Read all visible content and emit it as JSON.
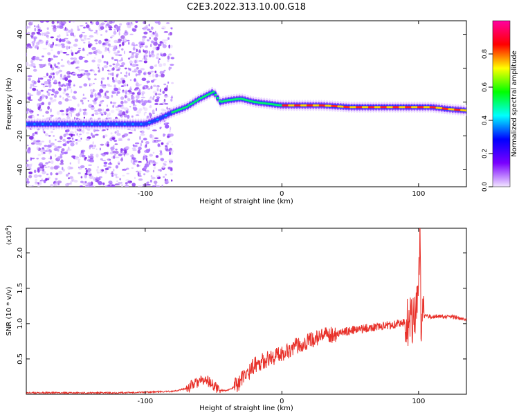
{
  "title": "C2E3.2022.313.10.00.G18",
  "chart_data": [
    {
      "type": "heatmap",
      "xlabel": "Height of straight line (km)",
      "ylabel": "Frequency (Hz)",
      "xlim": [
        -187,
        135
      ],
      "ylim": [
        -50,
        48
      ],
      "x_ticks": [
        -100,
        0,
        100
      ],
      "y_ticks": [
        -40,
        -20,
        0,
        20,
        40
      ],
      "colorbar": {
        "label": "Normalized spectral amplitude",
        "range": [
          0,
          1
        ],
        "ticks": [
          0.0,
          0.2,
          0.4,
          0.6,
          0.8
        ],
        "tick_labels": [
          "0.0",
          "0.2",
          "0.4",
          "0.6",
          "0.8"
        ],
        "colors": [
          "#f2e6ff",
          "#7a00ff",
          "#0000ff",
          "#00ffff",
          "#00ff00",
          "#ffff00",
          "#ff0000",
          "#ff00a0"
        ]
      },
      "ridge_line": {
        "x": [
          -187,
          -150,
          -130,
          -100,
          -90,
          -80,
          -70,
          -60,
          -55,
          -50,
          -45,
          -40,
          -30,
          -20,
          -10,
          0,
          10,
          30,
          50,
          70,
          90,
          100,
          110,
          120,
          135
        ],
        "frequency": [
          -13,
          -13,
          -13,
          -13,
          -10,
          -6,
          -3,
          2,
          4,
          6,
          0,
          1,
          2,
          0,
          -1,
          -2,
          -2,
          -2,
          -3,
          -3,
          -3,
          -3,
          -3,
          -4,
          -5
        ]
      },
      "noise_region_x": [
        -187,
        -80
      ]
    },
    {
      "type": "line",
      "xlabel": "Height of straight line (km)",
      "ylabel": "SNR (10 * v/v)",
      "y_multiplier_label": "(x10",
      "y_multiplier_exp": "4",
      "xlim": [
        -187,
        135
      ],
      "ylim": [
        0,
        2.35
      ],
      "x_ticks": [
        -100,
        0,
        100
      ],
      "y_ticks": [
        0.5,
        1.0,
        1.5,
        2.0
      ],
      "y_tick_labels": [
        "0.5",
        "1.0",
        "1.5",
        "2.0"
      ],
      "line_color": "#e8312a",
      "series": [
        {
          "x": [
            -187,
            -150,
            -120,
            -100,
            -80,
            -70,
            -65,
            -60,
            -55,
            -50,
            -45,
            -40,
            -35,
            -30,
            -25,
            -20,
            -10,
            0,
            10,
            20,
            30,
            40,
            50,
            60,
            70,
            80,
            90,
            95,
            98,
            100,
            101,
            102,
            103,
            105,
            110,
            120,
            130,
            135
          ],
          "y": [
            0.02,
            0.02,
            0.02,
            0.03,
            0.04,
            0.08,
            0.14,
            0.18,
            0.2,
            0.12,
            0.06,
            0.05,
            0.1,
            0.2,
            0.3,
            0.42,
            0.5,
            0.58,
            0.68,
            0.76,
            0.82,
            0.86,
            0.9,
            0.93,
            0.96,
            0.98,
            1.02,
            1.05,
            1.2,
            1.4,
            2.3,
            0.5,
            1.1,
            1.1,
            1.1,
            1.1,
            1.08,
            1.07
          ]
        }
      ]
    }
  ]
}
